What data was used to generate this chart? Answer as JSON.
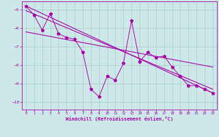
{
  "xlabel": "Windchill (Refroidissement éolien,°C)",
  "xlim": [
    -0.5,
    23.5
  ],
  "ylim": [
    -10.4,
    -4.55
  ],
  "yticks": [
    -10,
    -9,
    -8,
    -7,
    -6,
    -5
  ],
  "xticks": [
    0,
    1,
    2,
    3,
    4,
    5,
    6,
    7,
    8,
    9,
    10,
    11,
    12,
    13,
    14,
    15,
    16,
    17,
    18,
    19,
    20,
    21,
    22,
    23
  ],
  "bg_color": "#cce8e8",
  "grid_color": "#aacccc",
  "line_color": "#aa00aa",
  "series1_x": [
    0,
    1,
    2,
    3,
    4,
    5,
    6,
    7,
    8,
    9,
    10,
    11,
    12,
    13,
    14,
    15,
    16,
    17,
    18,
    19,
    20,
    21,
    22,
    23
  ],
  "series1_y": [
    -4.8,
    -5.3,
    -6.1,
    -5.2,
    -6.3,
    -6.5,
    -6.6,
    -7.3,
    -9.3,
    -9.7,
    -8.6,
    -8.8,
    -7.9,
    -5.6,
    -7.8,
    -7.3,
    -7.6,
    -7.5,
    -8.1,
    -8.6,
    -9.1,
    -9.1,
    -9.3,
    -9.5
  ],
  "series2_x": [
    0,
    23
  ],
  "series2_y": [
    -4.8,
    -9.5
  ],
  "series3_x": [
    0,
    23
  ],
  "series3_y": [
    -5.05,
    -9.3
  ],
  "series4_x": [
    0,
    23
  ],
  "series4_y": [
    -6.2,
    -8.1
  ]
}
